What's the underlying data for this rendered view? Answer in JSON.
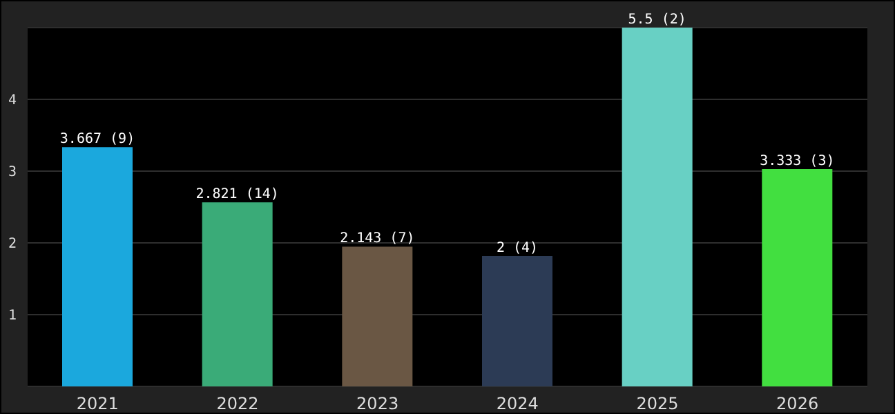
{
  "chart_data": {
    "type": "bar",
    "categories": [
      "2021",
      "2022",
      "2023",
      "2024",
      "2025",
      "2026"
    ],
    "values": [
      3.667,
      2.821,
      2.143,
      2,
      5.5,
      3.333
    ],
    "colors": [
      "#1ba8dd",
      "#3aab78",
      "#6a5744",
      "#2c3b55",
      "#68d0c4",
      "#42df40"
    ],
    "value_labels": [
      "3.667 (9)",
      "2.821 (14)",
      "2.143 (7)",
      "2 (4)",
      "5.5 (2)",
      "3.333 (3)"
    ],
    "ylim": [
      0,
      5.5
    ],
    "yticks": [
      {
        "value": 1.1,
        "label": "1"
      },
      {
        "value": 2.2,
        "label": "2"
      },
      {
        "value": 3.3,
        "label": "3"
      },
      {
        "value": 4.4,
        "label": "4"
      }
    ],
    "grid": "y"
  }
}
